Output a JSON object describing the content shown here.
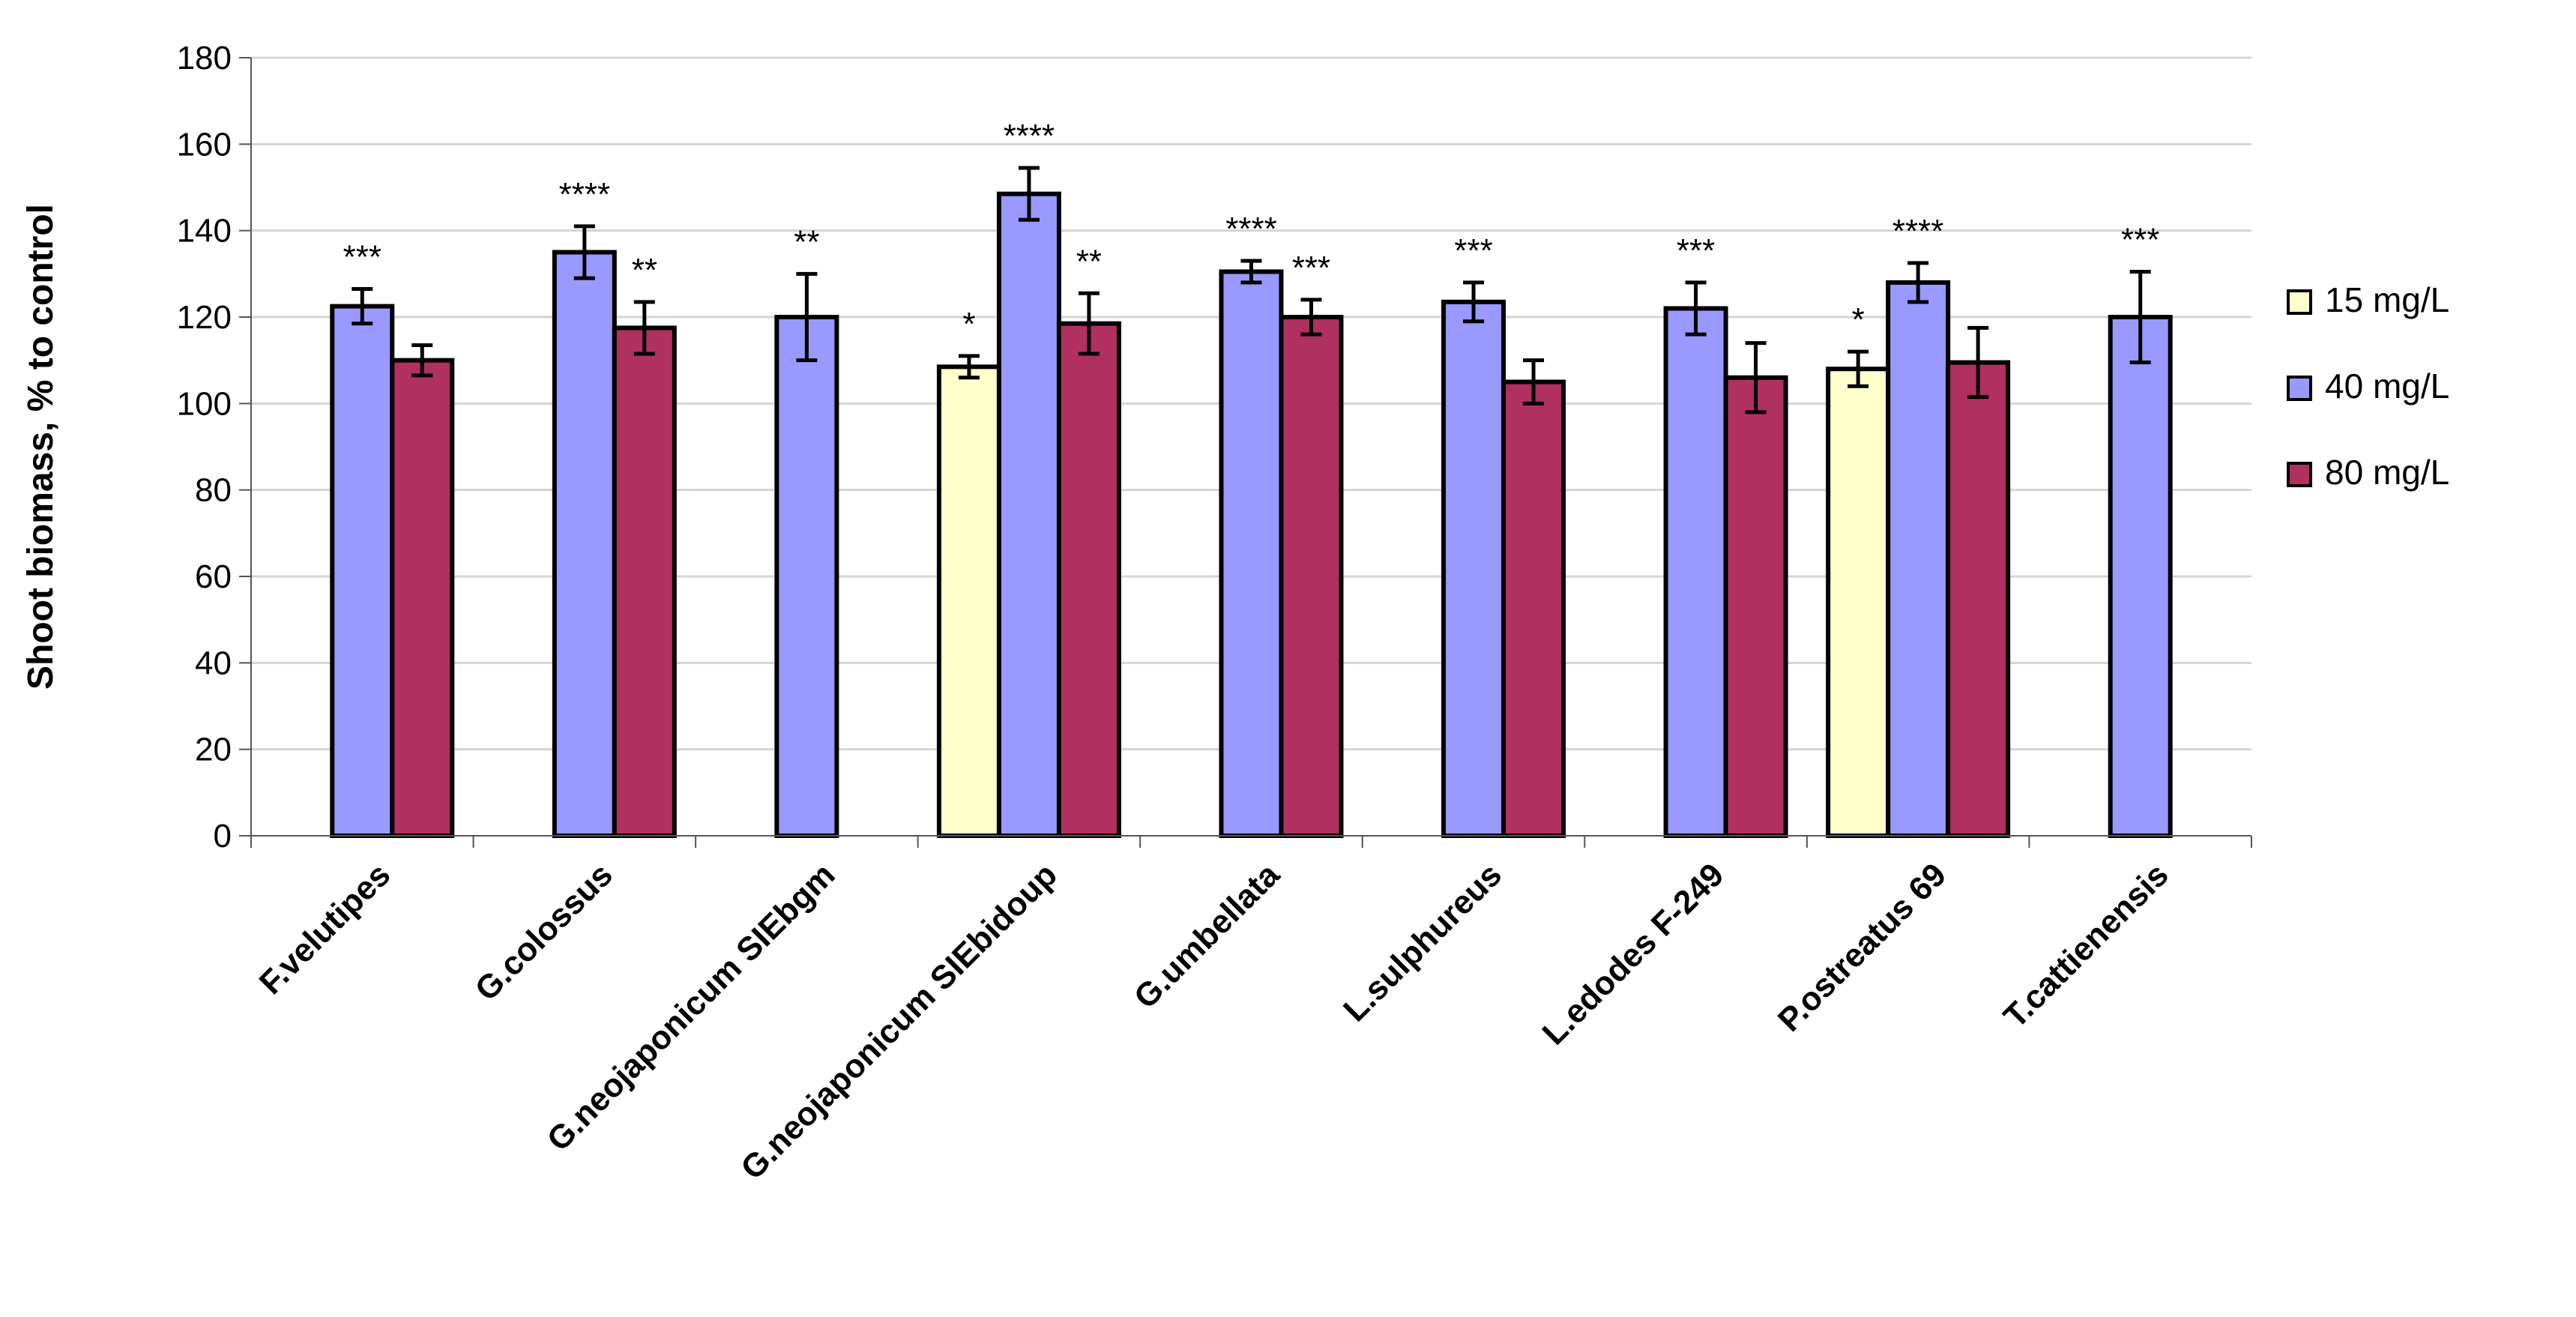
{
  "chart_data": {
    "type": "bar",
    "title": "",
    "xlabel": "",
    "ylabel": "Shoot biomass, % to control",
    "ylim": [
      0,
      180
    ],
    "yticks": [
      0,
      20,
      40,
      60,
      80,
      100,
      120,
      140,
      160,
      180
    ],
    "grid": true,
    "legend_placement": "right",
    "categories": [
      "F.velutipes",
      "G.colossus",
      "G.neojaponicum SIEbgm",
      "G.neojaponicum SIEbidoup",
      "G.umbellata",
      "L.sulphureus",
      "L.edodes F-249",
      "P.ostreatus 69",
      "T.cattienensis"
    ],
    "series": [
      {
        "name": "15 mg/L",
        "color": "#FFFFCC",
        "values": [
          null,
          null,
          null,
          108.5,
          null,
          null,
          null,
          108,
          null
        ],
        "errors": [
          null,
          null,
          null,
          2.5,
          null,
          null,
          null,
          4,
          null
        ],
        "significance": [
          "",
          "",
          "",
          "*",
          "",
          "",
          "",
          "*",
          ""
        ]
      },
      {
        "name": "40 mg/L",
        "color": "#9999FF",
        "values": [
          122.5,
          135,
          120,
          148.5,
          130.5,
          123.5,
          122,
          128,
          120
        ],
        "errors": [
          4,
          6,
          10,
          6,
          2.5,
          4.5,
          6,
          4.5,
          10.5
        ],
        "significance": [
          "***",
          "****",
          "**",
          "****",
          "****",
          "***",
          "***",
          "****",
          "***"
        ]
      },
      {
        "name": "80 mg/L",
        "color": "#B03060",
        "values": [
          110,
          117.5,
          null,
          118.5,
          120,
          105,
          106,
          109.5,
          null
        ],
        "errors": [
          3.5,
          6,
          null,
          7,
          4,
          5,
          8,
          8,
          null
        ],
        "significance": [
          "",
          "**",
          "",
          "**",
          "***",
          "",
          "",
          "",
          ""
        ]
      }
    ]
  }
}
